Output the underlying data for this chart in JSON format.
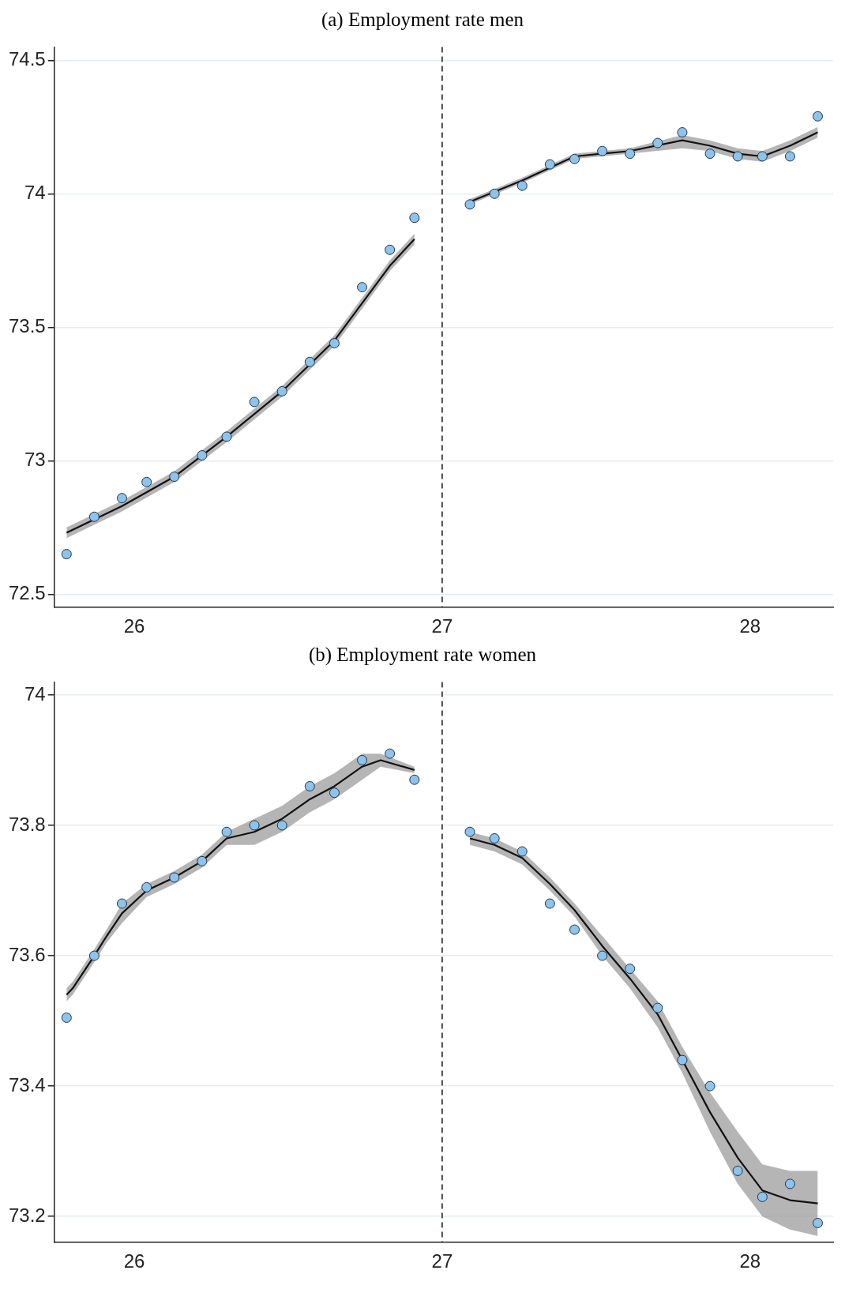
{
  "chart_data": [
    {
      "type": "scatter",
      "title": "(a) Employment rate men",
      "xlim": [
        25.74,
        28.27
      ],
      "xticks": [
        26,
        27,
        28
      ],
      "ylim": [
        72.45,
        74.55
      ],
      "yticks": [
        72.5,
        73,
        73.5,
        74,
        74.5
      ],
      "grid": "y",
      "ref_lines": [
        {
          "axis": "x",
          "value": 27,
          "line_style": "dashed",
          "color": "#222222"
        }
      ],
      "series": [
        {
          "type": "line",
          "color": "#111111",
          "x": [
            25.78,
            25.96,
            26.13,
            26.3,
            26.48,
            26.65,
            26.74,
            26.83,
            26.91
          ],
          "values": [
            72.73,
            72.83,
            72.94,
            73.09,
            73.26,
            73.45,
            73.59,
            73.73,
            73.83
          ],
          "lower": [
            72.71,
            72.81,
            72.92,
            73.07,
            73.24,
            73.43,
            73.57,
            73.71,
            73.81
          ],
          "upper": [
            72.75,
            72.85,
            72.96,
            73.11,
            73.28,
            73.47,
            73.61,
            73.75,
            73.85
          ]
        },
        {
          "type": "line",
          "color": "#111111",
          "x": [
            27.09,
            27.26,
            27.43,
            27.61,
            27.78,
            27.87,
            27.96,
            28.04,
            28.13,
            28.22
          ],
          "values": [
            73.97,
            74.05,
            74.14,
            74.16,
            74.2,
            74.18,
            74.15,
            74.14,
            74.18,
            74.23
          ],
          "lower": [
            73.96,
            74.04,
            74.13,
            74.15,
            74.17,
            74.16,
            74.13,
            74.12,
            74.16,
            74.21
          ],
          "upper": [
            73.98,
            74.06,
            74.15,
            74.17,
            74.22,
            74.2,
            74.17,
            74.16,
            74.2,
            74.25
          ]
        },
        {
          "marker": "circle",
          "color": "#8ec3ea",
          "x": [
            25.78,
            25.87,
            25.96,
            26.04,
            26.13,
            26.22,
            26.3,
            26.39,
            26.48,
            26.57,
            26.65,
            26.74,
            26.83,
            26.91,
            27.09,
            27.17,
            27.26,
            27.35,
            27.43,
            27.52,
            27.61,
            27.7,
            27.78,
            27.87,
            27.96,
            28.04,
            28.13,
            28.22
          ],
          "values": [
            72.65,
            72.79,
            72.86,
            72.92,
            72.94,
            73.02,
            73.09,
            73.22,
            73.26,
            73.37,
            73.44,
            73.65,
            73.79,
            73.91,
            73.96,
            74.0,
            74.03,
            74.11,
            74.13,
            74.16,
            74.15,
            74.19,
            74.23,
            74.15,
            74.14,
            74.14,
            74.14,
            74.29
          ]
        }
      ]
    },
    {
      "type": "scatter",
      "title": "(b) Employment rate women",
      "xlim": [
        25.74,
        28.27
      ],
      "xticks": [
        26,
        27,
        28
      ],
      "ylim": [
        73.16,
        74.02
      ],
      "yticks": [
        73.2,
        73.4,
        73.6,
        73.8,
        74
      ],
      "grid": "y",
      "ref_lines": [
        {
          "axis": "x",
          "value": 27,
          "line_style": "dashed",
          "color": "#222222"
        }
      ],
      "series": [
        {
          "type": "line",
          "color": "#111111",
          "x": [
            25.78,
            25.8,
            25.87,
            25.91,
            25.96,
            26.04,
            26.13,
            26.22,
            26.3,
            26.39,
            26.48,
            26.57,
            26.65,
            26.74,
            26.8,
            26.91
          ],
          "values": [
            73.54,
            73.55,
            73.6,
            73.63,
            73.665,
            73.7,
            73.72,
            73.745,
            73.78,
            73.79,
            73.81,
            73.84,
            73.86,
            73.89,
            73.9,
            73.885
          ],
          "lower": [
            73.53,
            73.54,
            73.59,
            73.62,
            73.65,
            73.69,
            73.71,
            73.735,
            73.77,
            73.77,
            73.79,
            73.82,
            73.84,
            73.87,
            73.89,
            73.88
          ],
          "upper": [
            73.55,
            73.56,
            73.61,
            73.64,
            73.68,
            73.71,
            73.73,
            73.755,
            73.79,
            73.81,
            73.83,
            73.86,
            73.88,
            73.91,
            73.91,
            73.89
          ]
        },
        {
          "type": "line",
          "color": "#111111",
          "x": [
            27.09,
            27.17,
            27.26,
            27.35,
            27.43,
            27.52,
            27.61,
            27.7,
            27.78,
            27.87,
            27.96,
            28.04,
            28.13,
            28.22
          ],
          "values": [
            73.78,
            73.77,
            73.75,
            73.71,
            73.67,
            73.615,
            73.565,
            73.51,
            73.44,
            73.36,
            73.29,
            73.24,
            73.225,
            73.22
          ],
          "lower": [
            73.77,
            73.76,
            73.74,
            73.7,
            73.66,
            73.6,
            73.55,
            73.49,
            73.42,
            73.33,
            73.25,
            73.2,
            73.18,
            73.17
          ],
          "upper": [
            73.79,
            73.78,
            73.76,
            73.72,
            73.68,
            73.63,
            73.58,
            73.53,
            73.46,
            73.39,
            73.33,
            73.28,
            73.27,
            73.27
          ]
        },
        {
          "marker": "circle",
          "color": "#8ec3ea",
          "x": [
            25.78,
            25.87,
            25.96,
            26.04,
            26.13,
            26.22,
            26.3,
            26.39,
            26.48,
            26.57,
            26.65,
            26.74,
            26.83,
            26.91,
            27.09,
            27.17,
            27.26,
            27.35,
            27.43,
            27.52,
            27.61,
            27.7,
            27.78,
            27.87,
            27.96,
            28.04,
            28.13,
            28.22
          ],
          "values": [
            73.505,
            73.6,
            73.68,
            73.705,
            73.72,
            73.745,
            73.79,
            73.8,
            73.8,
            73.86,
            73.85,
            73.9,
            73.91,
            73.87,
            73.79,
            73.78,
            73.76,
            73.68,
            73.64,
            73.6,
            73.58,
            73.52,
            73.44,
            73.4,
            73.27,
            73.23,
            73.25,
            73.19
          ]
        }
      ]
    }
  ]
}
